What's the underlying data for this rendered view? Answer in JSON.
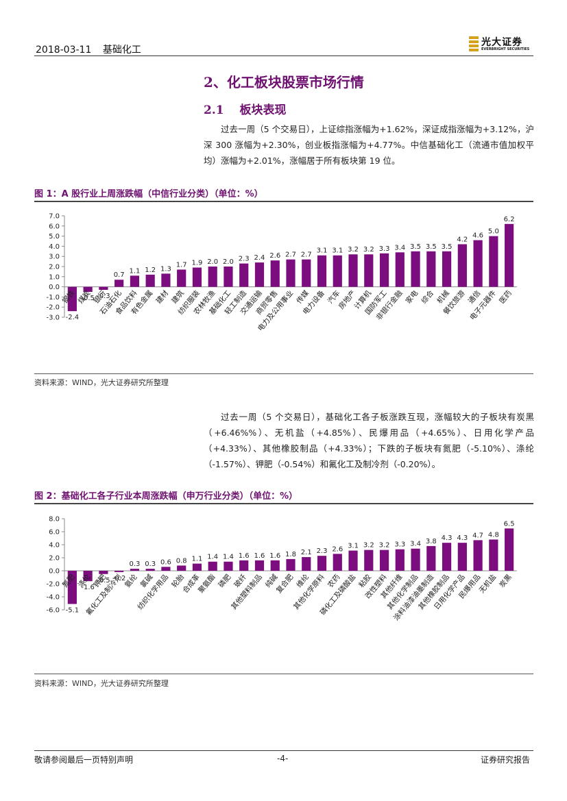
{
  "header": {
    "date": "2018-03-11",
    "industry": "基础化工",
    "logo_cn": "光大证券",
    "logo_en": "EVERBRIGHT SECURITIES"
  },
  "section": {
    "title": "2、化工板块股票市场行情",
    "subtitle": "2.1　 板块表现"
  },
  "paragraph1": "过去一周（5 个交易日），上证综指涨幅为+1.62%，深证成指涨幅为+3.12%，沪深 300 涨幅为+2.30%，创业板指涨幅为+4.77%。中信基础化工（流通市值加权平均）涨幅为+2.01%，涨幅居于所有板块第 19 位。",
  "figure1": {
    "title": "图 1：A 股行业上周涨跌幅（中信行业分类）（单位：%）",
    "source": "资料来源：WIND，光大证券研究所整理"
  },
  "paragraph2": "过去一周（5 个交易日），基础化工各子板涨跌互现，涨幅较大的子板块有炭黑（+6.46%%）、无机盐（+4.85%）、民爆用品（+4.65%）、日用化学产品（+4.33%）、其他橡胶制品（+4.33%）；下跌的子板块有氮肥（-5.10%）、涤纶（-1.57%）、钾肥（-0.54%）和氟化工及制冷剂（-0.20%）。",
  "figure2": {
    "title": "图 2：基础化工各子行业本周涨跌幅（申万行业分类）（单位：%）",
    "source": "资料来源：WIND，光大证券研究所整理"
  },
  "chart_data": [
    {
      "type": "bar",
      "categories": [
        "钢铁",
        "煤炭",
        "银行",
        "石油石化",
        "食品饮料",
        "有色金属",
        "建材",
        "建筑",
        "纺织服装",
        "农林牧渔",
        "基础化工",
        "轻工制造",
        "交通运输",
        "商贸零售",
        "电力及公用事业",
        "传媒",
        "电力设备",
        "汽车",
        "房地产",
        "计算机",
        "国防军工",
        "非银行金融",
        "家电",
        "综合",
        "机械",
        "餐饮旅游",
        "通信",
        "电子元器件",
        "医药"
      ],
      "values": [
        -2.4,
        -0.5,
        -0.3,
        0.7,
        1.1,
        1.2,
        1.3,
        1.7,
        1.9,
        2.0,
        2.0,
        2.3,
        2.4,
        2.6,
        2.7,
        2.7,
        3.1,
        3.1,
        3.2,
        3.2,
        3.3,
        3.4,
        3.5,
        3.5,
        3.5,
        4.2,
        4.6,
        5.0,
        6.2
      ],
      "y_ticks": [
        "7.0",
        "6.0",
        "5.0",
        "4.0",
        "3.0",
        "2.0",
        "1.0",
        "0.0",
        "-1.0",
        "-2.0",
        "-3.0"
      ],
      "ylim": [
        -3.0,
        7.0
      ],
      "color": "#7b0d7e",
      "grid": false
    },
    {
      "type": "bar",
      "categories": [
        "氮肥",
        "涤纶",
        "钾肥",
        "氟化工及制冷剂",
        "氨纶",
        "氯碱",
        "纺织化学用品",
        "轮胎",
        "合成革",
        "聚氨酯",
        "磷肥",
        "玻纤",
        "其他塑料制品",
        "纯碱",
        "复合肥",
        "维纶",
        "其他化学原料",
        "农药",
        "磷化工及磷酸盐",
        "粘胶",
        "改性塑料",
        "其他纤维",
        "其他化学制品",
        "涂料油漆油墨制造",
        "其他橡胶制品",
        "日用化学产品",
        "民爆用品",
        "无机盐",
        "炭黑"
      ],
      "values": [
        -5.1,
        -1.6,
        -0.5,
        -0.2,
        0.3,
        0.3,
        0.6,
        0.8,
        1.1,
        1.4,
        1.4,
        1.6,
        1.6,
        1.6,
        1.8,
        2.1,
        2.3,
        2.6,
        3.1,
        3.2,
        3.2,
        3.3,
        3.4,
        3.8,
        4.3,
        4.3,
        4.7,
        4.8,
        6.5
      ],
      "y_ticks": [
        "8.0",
        "6.0",
        "4.0",
        "2.0",
        "0.0",
        "-2.0",
        "-4.0",
        "-6.0"
      ],
      "ylim": [
        -6.0,
        8.0
      ],
      "color": "#7b0d7e",
      "grid": false
    }
  ],
  "footer": {
    "disclaimer": "敬请参阅最后一页特别声明",
    "page": "-4-",
    "report_type": "证券研究报告"
  }
}
